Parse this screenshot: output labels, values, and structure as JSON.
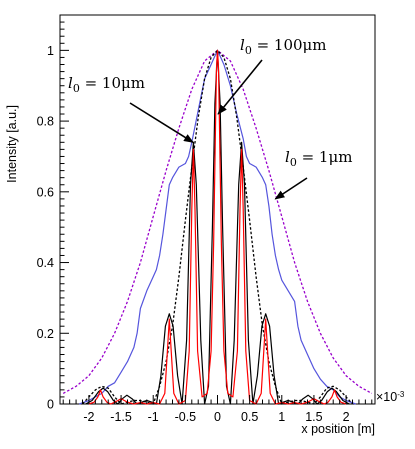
{
  "chart_data": {
    "type": "line",
    "xlabel": "x position [m]",
    "ylabel": "Intensity [a.u.]",
    "x_multiplier": "×10",
    "x_multiplier_exp": "-3",
    "xlim": [
      -2.45,
      2.45
    ],
    "ylim": [
      0,
      1.1
    ],
    "xticks": [
      -2,
      -1.5,
      -1,
      -0.5,
      0,
      0.5,
      1,
      1.5,
      2
    ],
    "xtick_labels": [
      "-2",
      "-1.5",
      "-1",
      "-0.5",
      "0",
      "0.5",
      "1",
      "1.5",
      "2"
    ],
    "yticks": [
      0,
      0.2,
      0.4,
      0.6,
      0.8,
      1
    ],
    "ytick_labels": [
      "0",
      "0.2",
      "0.4",
      "0.6",
      "0.8",
      "1"
    ],
    "grid": false,
    "legend": "none",
    "annotations": [
      {
        "base": "l",
        "sub": "0",
        "rest": " = 10μm",
        "target_x": -0.38,
        "target_y": 0.74
      },
      {
        "base": "l",
        "sub": "0",
        "rest": " = 100μm",
        "target_x": 0.01,
        "target_y": 0.82
      },
      {
        "base": "l",
        "sub": "0",
        "rest": " = 1μm",
        "target_x": 0.9,
        "target_y": 0.58
      }
    ],
    "series": [
      {
        "color": "#9900cc",
        "style": "dotted",
        "x": [
          -2.4,
          -2.2,
          -2.0,
          -1.8,
          -1.6,
          -1.4,
          -1.2,
          -1.0,
          -0.8,
          -0.6,
          -0.4,
          -0.2,
          0.0,
          0.2,
          0.4,
          0.6,
          0.8,
          1.0,
          1.2,
          1.4,
          1.6,
          1.8,
          2.0,
          2.2,
          2.4
        ],
        "y": [
          0.03,
          0.05,
          0.08,
          0.13,
          0.2,
          0.29,
          0.4,
          0.53,
          0.66,
          0.78,
          0.89,
          0.97,
          1.0,
          0.97,
          0.89,
          0.78,
          0.66,
          0.53,
          0.4,
          0.29,
          0.2,
          0.13,
          0.08,
          0.05,
          0.03
        ]
      },
      {
        "color": "#5555dd",
        "style": "solid",
        "x": [
          -2.15,
          -2.0,
          -1.9,
          -1.8,
          -1.7,
          -1.6,
          -1.5,
          -1.4,
          -1.3,
          -1.25,
          -1.2,
          -1.1,
          -1.0,
          -0.95,
          -0.9,
          -0.85,
          -0.8,
          -0.75,
          -0.7,
          -0.6,
          -0.5,
          -0.45,
          -0.4,
          -0.3,
          -0.2,
          -0.1,
          -0.05,
          0.0,
          0.05,
          0.1,
          0.2,
          0.3,
          0.4,
          0.45,
          0.5,
          0.6,
          0.7,
          0.75,
          0.8,
          0.85,
          0.9,
          0.95,
          1.0,
          1.1,
          1.2,
          1.25,
          1.3,
          1.4,
          1.5,
          1.6,
          1.7,
          1.8,
          1.9,
          2.0,
          2.15
        ],
        "y": [
          0.0,
          0.01,
          0.02,
          0.03,
          0.05,
          0.06,
          0.09,
          0.12,
          0.16,
          0.2,
          0.27,
          0.32,
          0.36,
          0.38,
          0.42,
          0.48,
          0.55,
          0.62,
          0.64,
          0.67,
          0.68,
          0.7,
          0.74,
          0.83,
          0.92,
          0.96,
          0.98,
          1.0,
          0.98,
          0.96,
          0.9,
          0.82,
          0.75,
          0.7,
          0.68,
          0.67,
          0.64,
          0.62,
          0.56,
          0.48,
          0.42,
          0.38,
          0.35,
          0.32,
          0.29,
          0.22,
          0.18,
          0.14,
          0.1,
          0.07,
          0.05,
          0.04,
          0.02,
          0.01,
          0.0
        ]
      },
      {
        "color": "#000000",
        "style": "dotted",
        "x": [
          -2.1,
          -2.0,
          -1.9,
          -1.8,
          -1.7,
          -1.6,
          -1.5,
          -1.4,
          -1.3,
          -1.2,
          -1.1,
          -1.0,
          -0.9,
          -0.8,
          -0.7,
          -0.6,
          -0.5,
          -0.4,
          -0.3,
          -0.2,
          -0.1,
          0.0,
          0.1,
          0.2,
          0.3,
          0.4,
          0.5,
          0.6,
          0.7,
          0.8,
          0.9,
          1.0,
          1.1,
          1.2,
          1.3,
          1.4,
          1.5,
          1.6,
          1.7,
          1.8,
          1.9,
          2.0,
          2.1
        ],
        "y": [
          0.0,
          0.02,
          0.04,
          0.05,
          0.045,
          0.02,
          0.0,
          0.005,
          0.01,
          0.01,
          0.005,
          0.0,
          0.05,
          0.12,
          0.22,
          0.36,
          0.52,
          0.67,
          0.81,
          0.92,
          0.98,
          1.0,
          0.98,
          0.92,
          0.81,
          0.67,
          0.52,
          0.36,
          0.22,
          0.12,
          0.05,
          0.0,
          0.005,
          0.01,
          0.01,
          0.005,
          0.0,
          0.02,
          0.045,
          0.05,
          0.04,
          0.02,
          0.0
        ]
      },
      {
        "color": "#000000",
        "style": "solid",
        "x": [
          -2.05,
          -1.95,
          -1.85,
          -1.78,
          -1.71,
          -1.62,
          -1.55,
          -1.48,
          -1.41,
          -1.33,
          -1.25,
          -1.18,
          -1.1,
          -1.02,
          -0.95,
          -0.88,
          -0.81,
          -0.75,
          -0.69,
          -0.62,
          -0.55,
          -0.48,
          -0.42,
          -0.375,
          -0.33,
          -0.26,
          -0.2,
          -0.14,
          -0.08,
          -0.04,
          0.0,
          0.04,
          0.08,
          0.14,
          0.2,
          0.26,
          0.33,
          0.375,
          0.42,
          0.48,
          0.55,
          0.62,
          0.69,
          0.75,
          0.81,
          0.88,
          0.95,
          1.02,
          1.1,
          1.18,
          1.25,
          1.33,
          1.41,
          1.48,
          1.55,
          1.62,
          1.71,
          1.78,
          1.85,
          1.95,
          2.05
        ],
        "y": [
          0.0,
          0.01,
          0.035,
          0.045,
          0.035,
          0.01,
          0.0,
          0.015,
          0.025,
          0.015,
          0.0,
          0.005,
          0.01,
          0.005,
          0.0,
          0.08,
          0.22,
          0.255,
          0.22,
          0.08,
          0.0,
          0.18,
          0.62,
          0.74,
          0.62,
          0.18,
          0.0,
          0.05,
          0.5,
          0.85,
          1.0,
          0.85,
          0.5,
          0.05,
          0.0,
          0.18,
          0.62,
          0.74,
          0.62,
          0.18,
          0.0,
          0.08,
          0.22,
          0.255,
          0.22,
          0.08,
          0.0,
          0.005,
          0.01,
          0.005,
          0.0,
          0.015,
          0.025,
          0.015,
          0.0,
          0.01,
          0.035,
          0.045,
          0.035,
          0.01,
          0.0
        ]
      },
      {
        "color": "#ff0000",
        "style": "solid",
        "x": [
          -2.0,
          -1.92,
          -1.86,
          -1.82,
          -1.78,
          -1.72,
          -1.66,
          -1.6,
          -1.55,
          -1.5,
          -1.45,
          -1.4,
          -1.3,
          -1.2,
          -1.1,
          -1.0,
          -0.9,
          -0.82,
          -0.78,
          -0.75,
          -0.72,
          -0.68,
          -0.6,
          -0.5,
          -0.44,
          -0.4,
          -0.375,
          -0.35,
          -0.31,
          -0.24,
          -0.16,
          -0.1,
          -0.06,
          -0.03,
          -0.015,
          0.0,
          0.015,
          0.03,
          0.06,
          0.1,
          0.16,
          0.24,
          0.31,
          0.35,
          0.375,
          0.4,
          0.44,
          0.5,
          0.6,
          0.68,
          0.72,
          0.75,
          0.78,
          0.82,
          0.9,
          1.0,
          1.1,
          1.2,
          1.3,
          1.4,
          1.45,
          1.5,
          1.55,
          1.6,
          1.66,
          1.72,
          1.78,
          1.82,
          1.86,
          1.92,
          2.0
        ],
        "y": [
          0.0,
          0.005,
          0.02,
          0.04,
          0.02,
          0.005,
          0.0,
          0.005,
          0.01,
          0.015,
          0.01,
          0.005,
          0.0,
          0.004,
          0.0,
          0.004,
          0.0,
          0.03,
          0.15,
          0.24,
          0.15,
          0.03,
          0.0,
          0.01,
          0.15,
          0.55,
          0.72,
          0.55,
          0.15,
          0.02,
          0.03,
          0.15,
          0.45,
          0.8,
          0.95,
          1.0,
          0.95,
          0.8,
          0.45,
          0.15,
          0.03,
          0.02,
          0.15,
          0.55,
          0.72,
          0.55,
          0.15,
          0.01,
          0.0,
          0.03,
          0.15,
          0.24,
          0.15,
          0.03,
          0.0,
          0.004,
          0.0,
          0.004,
          0.0,
          0.005,
          0.01,
          0.015,
          0.01,
          0.005,
          0.0,
          0.005,
          0.02,
          0.04,
          0.02,
          0.005,
          0.0
        ]
      }
    ]
  }
}
